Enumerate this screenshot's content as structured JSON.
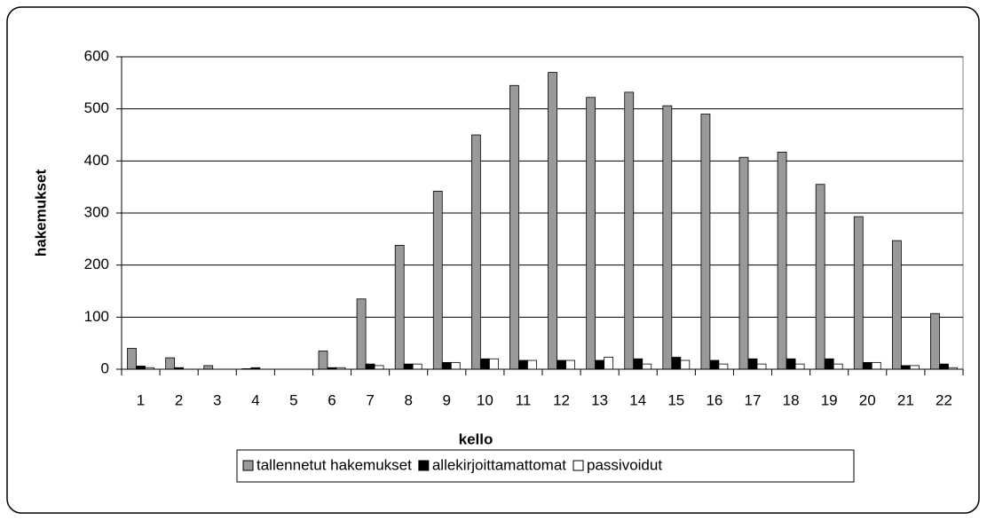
{
  "chart_data": {
    "type": "bar",
    "xlabel": "kello",
    "ylabel": "hakemukset",
    "categories": [
      "1",
      "2",
      "3",
      "4",
      "5",
      "6",
      "7",
      "8",
      "9",
      "10",
      "11",
      "12",
      "13",
      "14",
      "15",
      "16",
      "17",
      "18",
      "19",
      "20",
      "21",
      "22"
    ],
    "series": [
      {
        "name": "tallennetut hakemukset",
        "color": "#999999",
        "values": [
          40,
          22,
          7,
          1,
          0,
          35,
          135,
          238,
          342,
          450,
          545,
          570,
          522,
          532,
          506,
          490,
          407,
          417,
          355,
          293,
          247,
          107
        ]
      },
      {
        "name": "allekirjoittamattomat",
        "color": "#000000",
        "values": [
          6,
          3,
          0,
          3,
          0,
          3,
          10,
          10,
          13,
          20,
          17,
          17,
          17,
          20,
          23,
          17,
          20,
          20,
          20,
          13,
          7,
          10
        ]
      },
      {
        "name": "passivoidut",
        "color": "#ffffff",
        "values": [
          3,
          0,
          0,
          0,
          0,
          3,
          7,
          10,
          13,
          20,
          17,
          17,
          23,
          10,
          17,
          10,
          10,
          10,
          10,
          13,
          7,
          3
        ]
      }
    ],
    "ylim": [
      0,
      600
    ],
    "yticks": [
      0,
      100,
      200,
      300,
      400,
      500,
      600
    ],
    "grid": true,
    "legend": "bottom"
  }
}
